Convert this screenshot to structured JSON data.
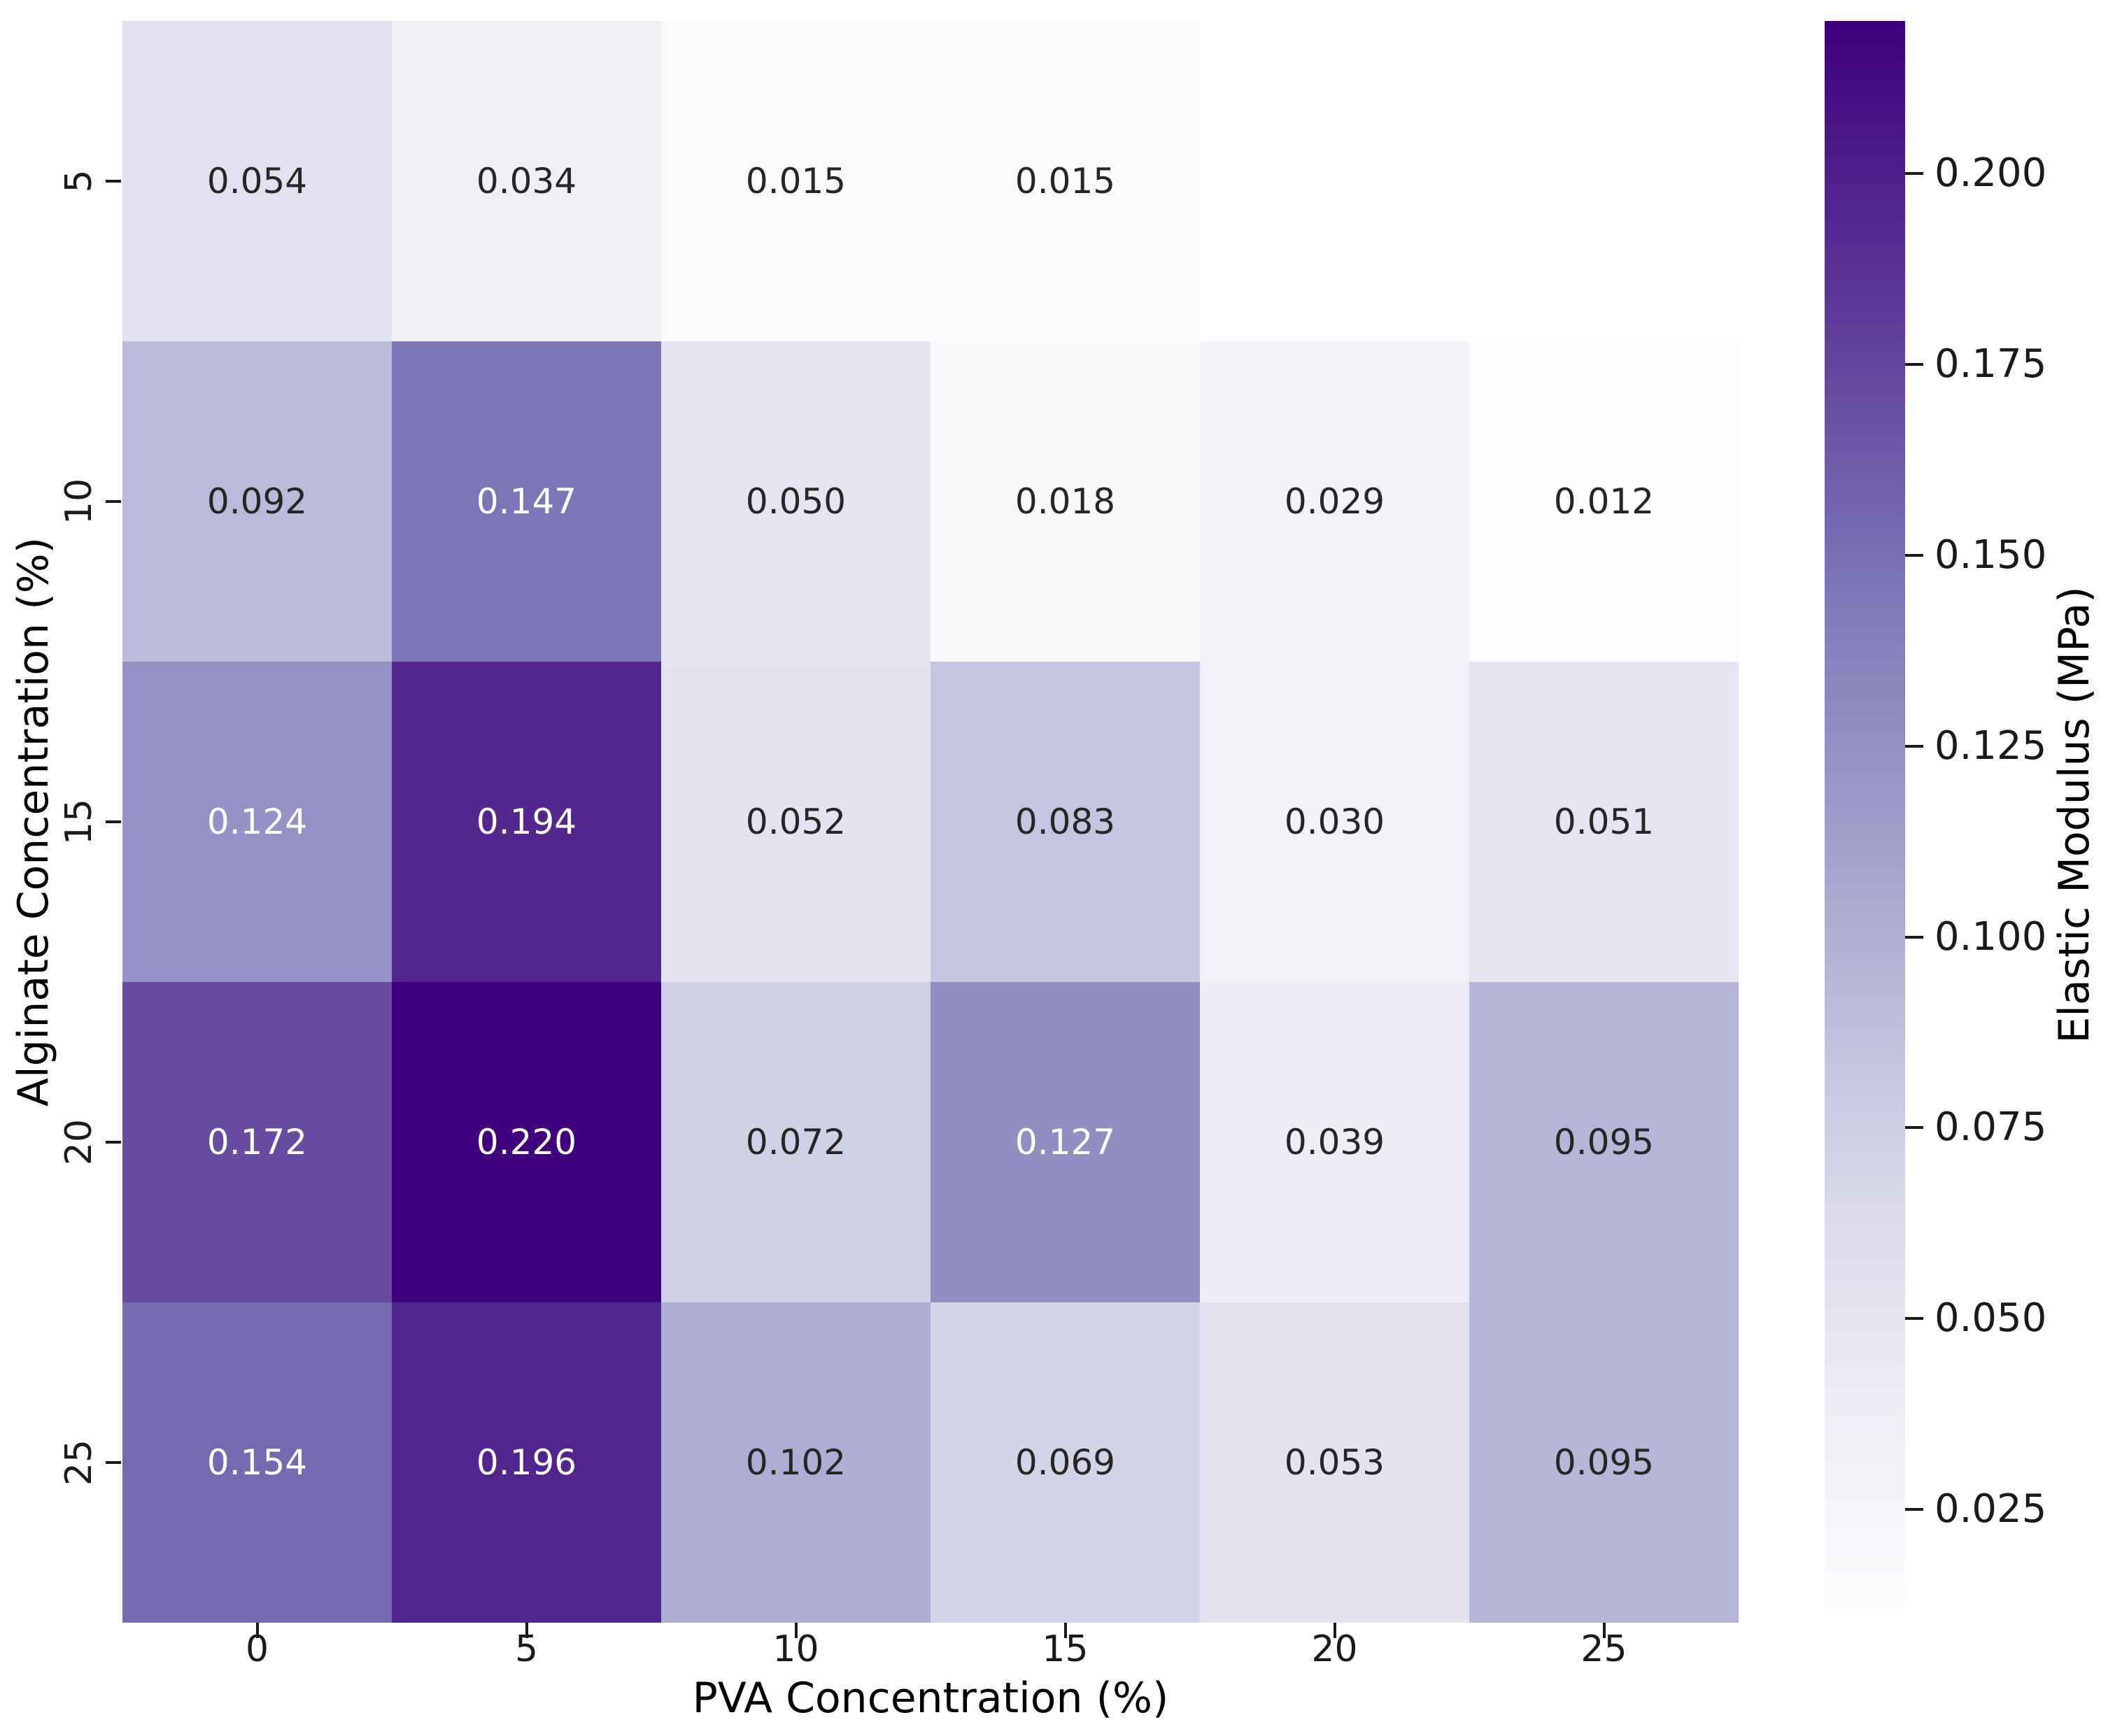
{
  "chart_data": {
    "type": "heatmap",
    "title": "",
    "xlabel": "PVA Concentration (%)",
    "ylabel": "Alginate Concentration (%)",
    "colorbar_label": "Elastic Modulus (MPa)",
    "x_tick_labels": [
      "0",
      "5",
      "10",
      "15",
      "20",
      "25"
    ],
    "y_tick_labels": [
      "5",
      "10",
      "15",
      "20",
      "25"
    ],
    "values": [
      [
        0.054,
        0.034,
        0.015,
        0.015,
        null,
        null
      ],
      [
        0.092,
        0.147,
        0.05,
        0.018,
        0.029,
        0.012
      ],
      [
        0.124,
        0.194,
        0.052,
        0.083,
        0.03,
        0.051
      ],
      [
        0.172,
        0.22,
        0.072,
        0.127,
        0.039,
        0.095
      ],
      [
        0.154,
        0.196,
        0.102,
        0.069,
        0.053,
        0.095
      ]
    ],
    "annot_decimals": 3,
    "vmin": 0.012,
    "vmax": 0.22,
    "colormap": "Purples",
    "colormap_stops": [
      "#fcfbfd",
      "#efedf5",
      "#dadaeb",
      "#bcbddc",
      "#9e9ac8",
      "#807dba",
      "#6a51a3",
      "#54278f",
      "#3f007d"
    ],
    "colorbar_tick_labels": [
      "0.200",
      "0.175",
      "0.150",
      "0.125",
      "0.100",
      "0.075",
      "0.050",
      "0.025"
    ],
    "colorbar_tick_values": [
      0.2,
      0.175,
      0.15,
      0.125,
      0.1,
      0.075,
      0.05,
      0.025
    ],
    "legend_position": "right",
    "grid": false
  },
  "colors": {
    "background": "#ffffff",
    "annotation_dark": "#262626",
    "annotation_light": "#ffffff",
    "tick": "#1a1a1a"
  }
}
